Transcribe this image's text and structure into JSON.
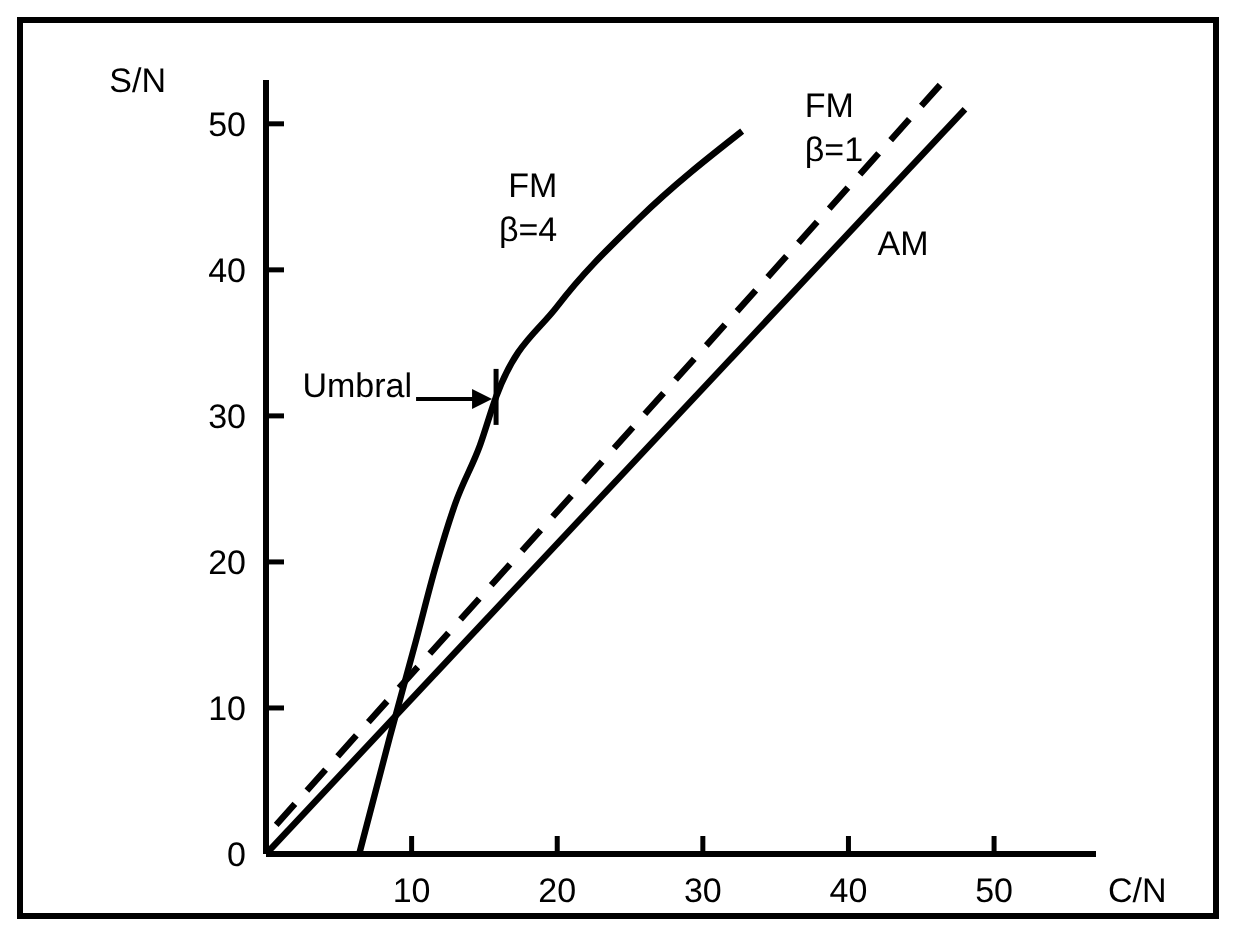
{
  "chart_data": {
    "type": "line",
    "xlabel": "C/N",
    "ylabel": "S/N",
    "xlim": [
      0,
      57
    ],
    "ylim": [
      0,
      53
    ],
    "xticks": [
      10,
      20,
      30,
      40,
      50
    ],
    "yticks": [
      0,
      10,
      20,
      30,
      40,
      50
    ],
    "grid": false,
    "series": [
      {
        "name": "FM β=4",
        "color": "#000000",
        "line_style": "solid",
        "x": [
          6.4,
          8.5,
          10.3,
          11.6,
          13,
          14.7,
          15.8,
          20,
          25.6,
          32.7
        ],
        "values": [
          0,
          8,
          14.6,
          19.5,
          24,
          28,
          31.3,
          37.5,
          43.5,
          49.5
        ]
      },
      {
        "name": "FM β=1",
        "color": "#000000",
        "line_style": "dashed",
        "x": [
          0.7,
          46.6
        ],
        "values": [
          2,
          53
        ]
      },
      {
        "name": "AM",
        "color": "#000000",
        "line_style": "solid",
        "x": [
          0,
          48
        ],
        "values": [
          0,
          51
        ]
      }
    ],
    "annotations": [
      {
        "text": "Umbral",
        "x": 15.8,
        "y": 31.3
      }
    ]
  }
}
